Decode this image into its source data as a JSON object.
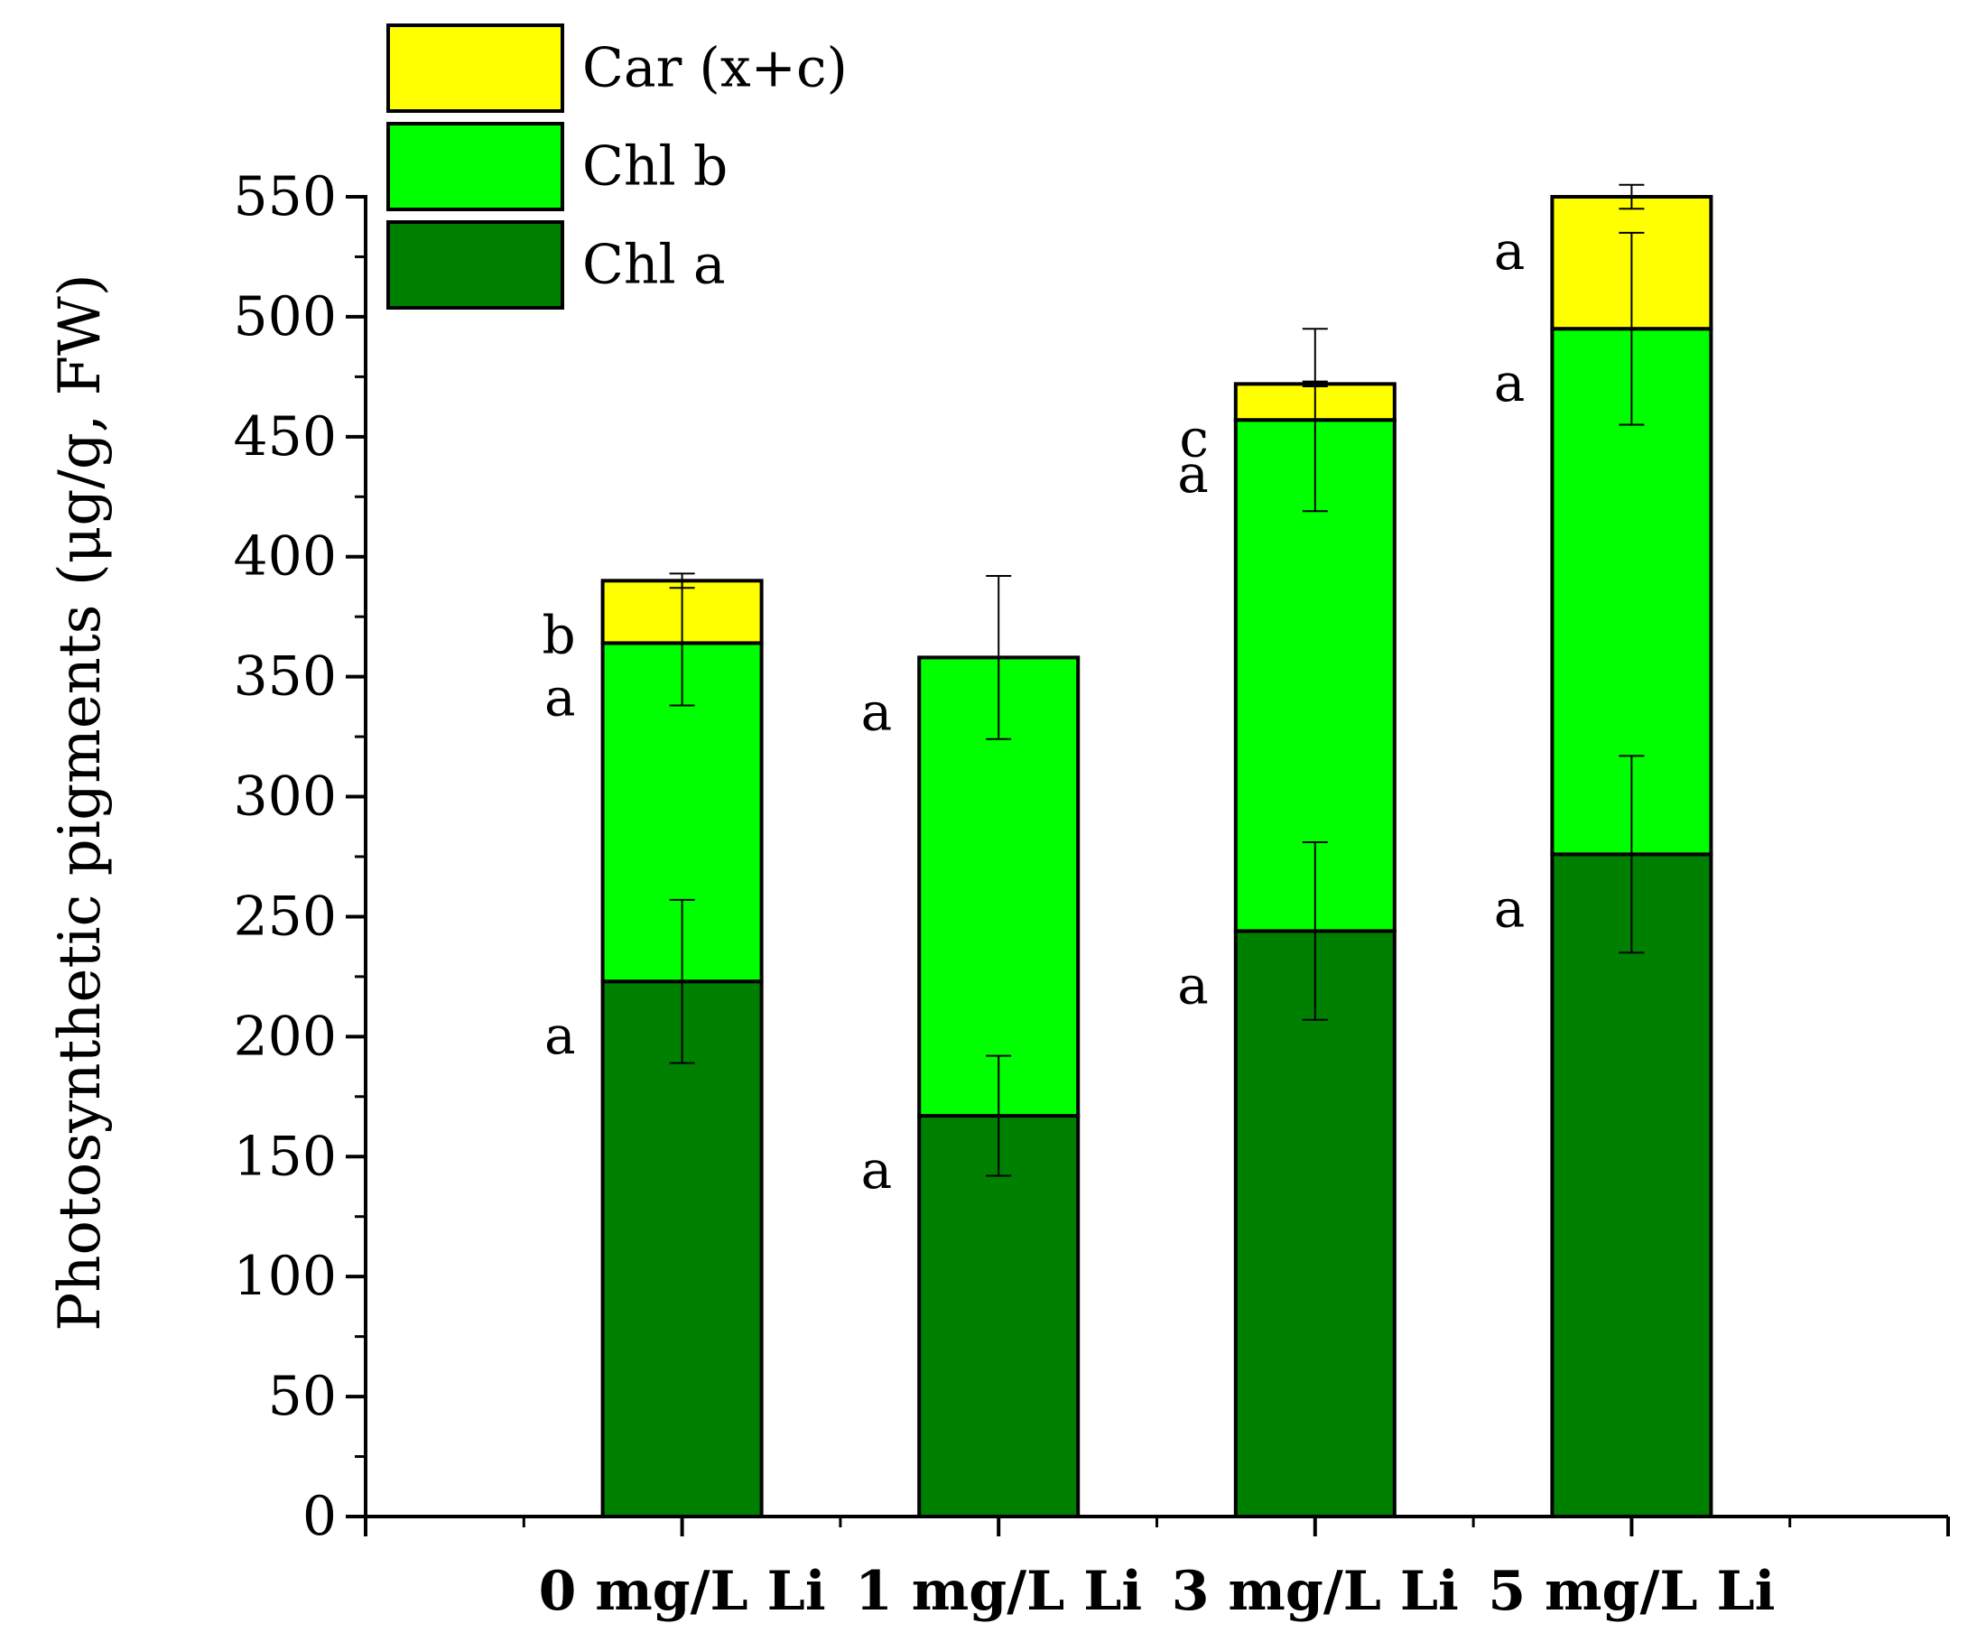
{
  "chart_data": {
    "type": "bar",
    "stacked": true,
    "ylabel": "Photosynthetic pigments (μg/g, FW)",
    "xlabel": "",
    "ylim": [
      0,
      550
    ],
    "yticks": [
      0,
      50,
      100,
      150,
      200,
      250,
      300,
      350,
      400,
      450,
      500,
      550
    ],
    "categories": [
      "0 mg/L Li",
      "1 mg/L Li",
      "3 mg/L Li",
      "5 mg/L Li"
    ],
    "legend_position": "top-left",
    "series": [
      {
        "name": "Chl a",
        "color": "#008000",
        "values": [
          223,
          167,
          244,
          276
        ],
        "errors": [
          34,
          25,
          37,
          41
        ],
        "significance": [
          "a",
          "a",
          "a",
          "a"
        ]
      },
      {
        "name": "Chl b",
        "color": "#00ff00",
        "values": [
          141,
          191,
          213,
          219
        ],
        "errors": [
          26,
          34,
          38,
          40
        ],
        "significance": [
          "a",
          "a",
          "a",
          "a"
        ]
      },
      {
        "name": "Car (x+c)",
        "color": "#ffff00",
        "values": [
          26,
          0,
          15,
          55
        ],
        "errors": [
          3,
          0,
          1,
          5
        ],
        "significance": [
          "b",
          "",
          "c",
          "a"
        ]
      }
    ]
  }
}
